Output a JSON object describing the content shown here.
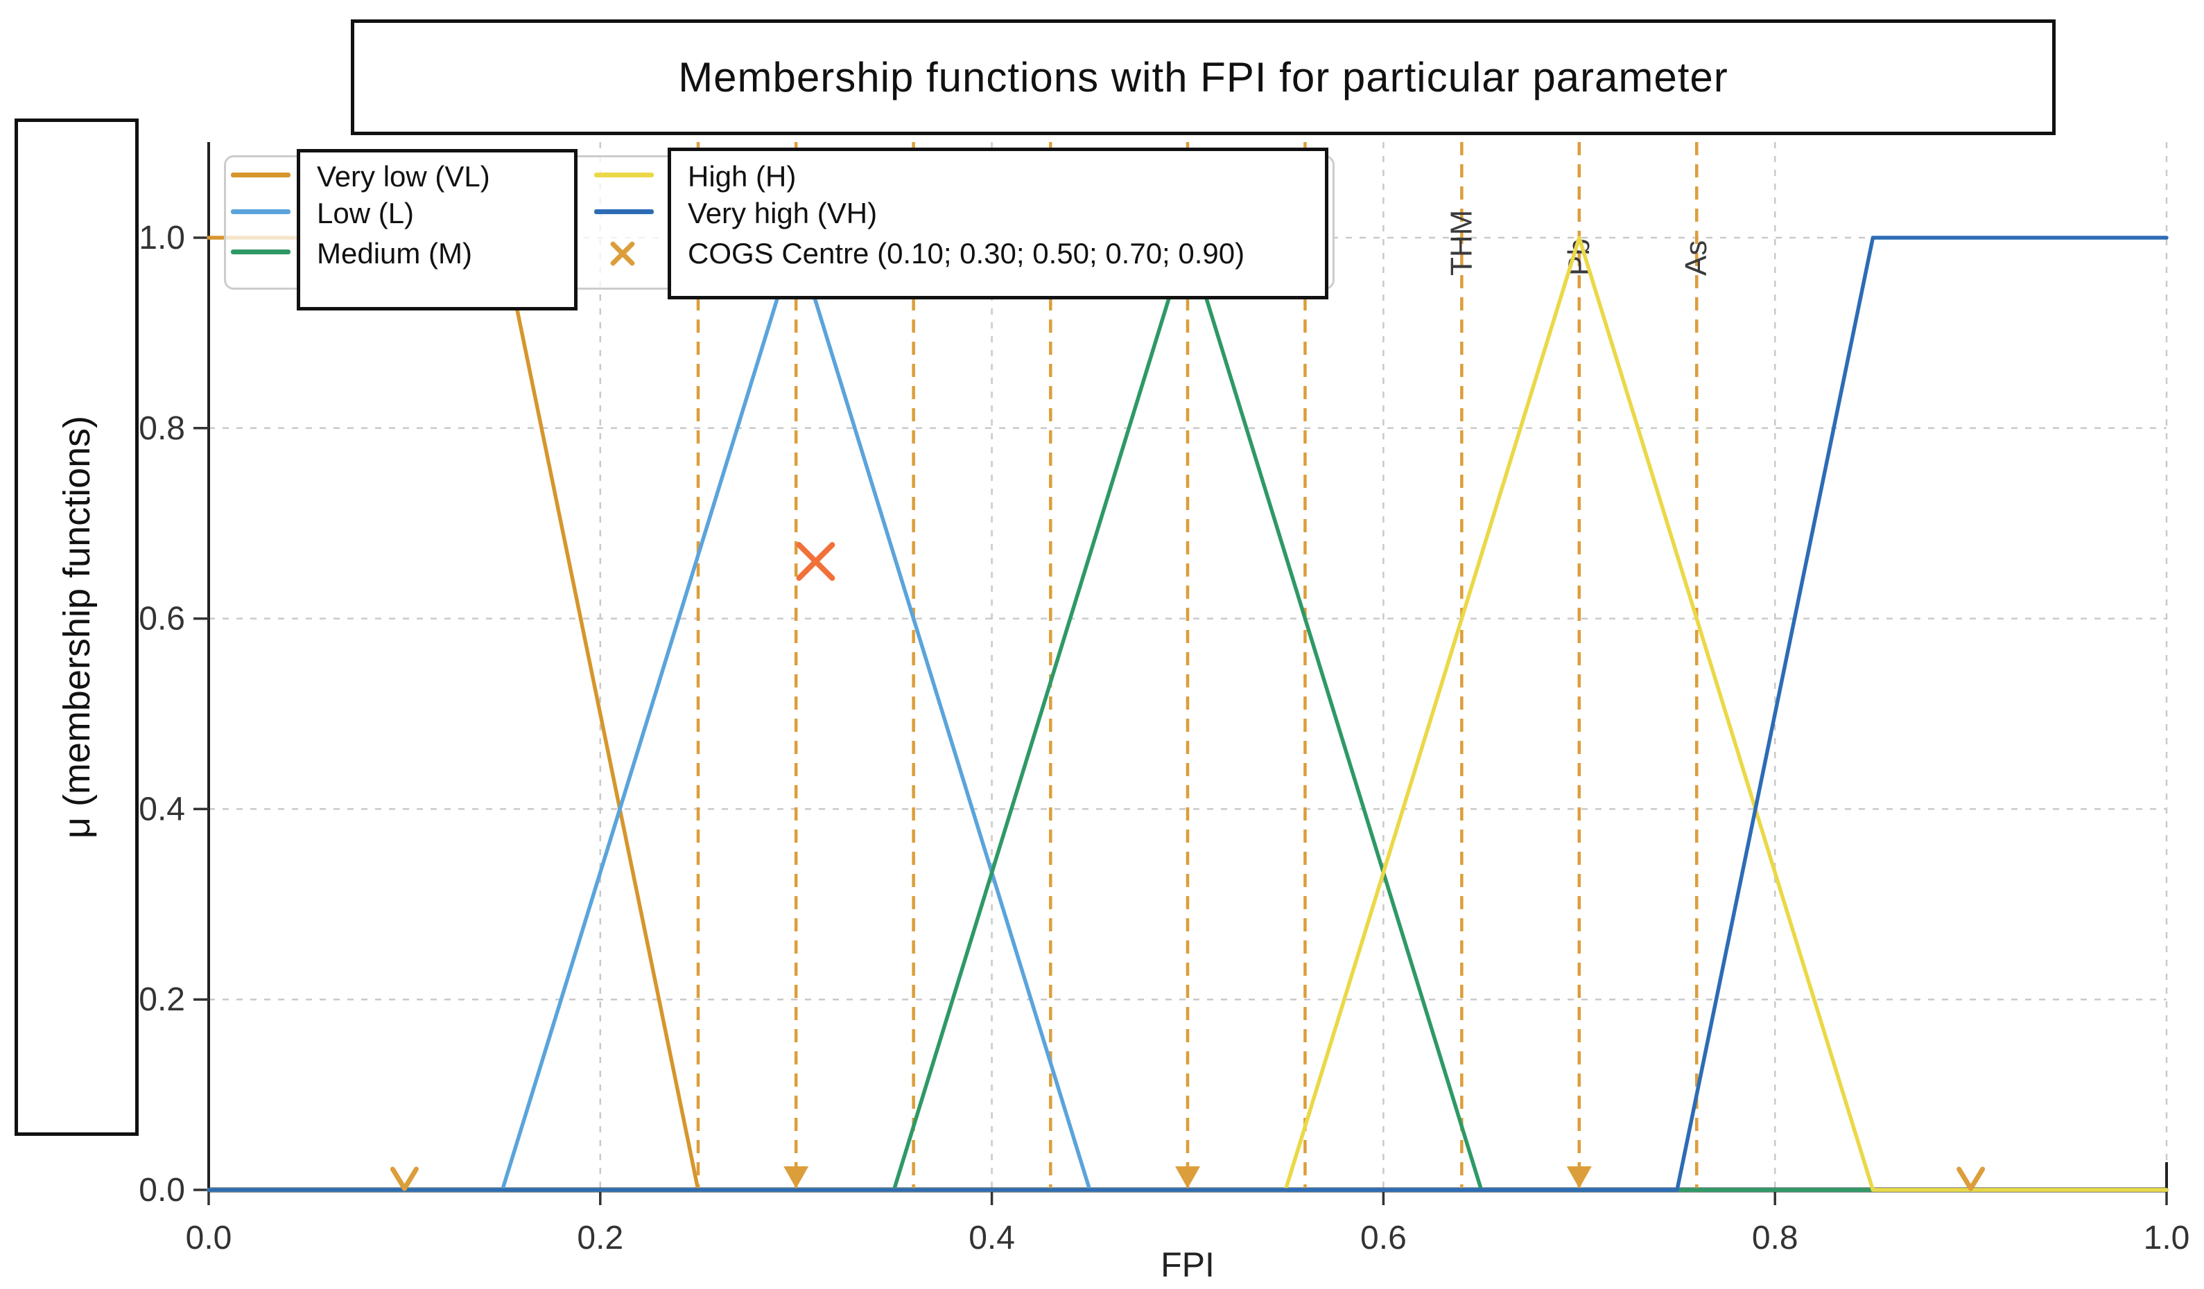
{
  "title": "Membership functions with FPI for particular parameter",
  "axes": {
    "xlabel": "FPI",
    "ylabel": "μ (membership functions)"
  },
  "legend": {
    "column1": [
      {
        "label": "Very low (VL)",
        "color": "#D6962D",
        "marker": "line"
      },
      {
        "label": "Low (L)",
        "color": "#5AA4DB",
        "marker": "line"
      },
      {
        "label": "Medium (M)",
        "color": "#2E9966",
        "marker": "line"
      }
    ],
    "column2": [
      {
        "label": "High (H)",
        "color": "#EBD847",
        "marker": "line"
      },
      {
        "label": "Very high (VH)",
        "color": "#2D6CB5",
        "marker": "line"
      },
      {
        "label": "COGS Centre (0.10; 0.30; 0.50; 0.70; 0.90)",
        "color": "#DC9E3A",
        "marker": "x"
      }
    ]
  },
  "chart_data": {
    "type": "line",
    "title": "Membership functions with FPI for particular parameter",
    "xlabel": "FPI",
    "ylabel": "μ (membership functions)",
    "xlim": [
      0.0,
      1.0
    ],
    "ylim": [
      0.0,
      1.1
    ],
    "grid": true,
    "legend_position": "upper left",
    "x_ticks": [
      0.0,
      0.2,
      0.4,
      0.6,
      0.8,
      1.0
    ],
    "y_ticks": [
      0.0,
      0.2,
      0.4,
      0.6,
      0.8,
      1.0
    ],
    "series": [
      {
        "name": "Very low (VL)",
        "color": "#D6962D",
        "points": [
          [
            0,
            1
          ],
          [
            0.15,
            1
          ],
          [
            0.25,
            0
          ],
          [
            1,
            0
          ]
        ]
      },
      {
        "name": "Low (L)",
        "color": "#5AA4DB",
        "points": [
          [
            0,
            0
          ],
          [
            0.15,
            0
          ],
          [
            0.3,
            1
          ],
          [
            0.45,
            0
          ],
          [
            1,
            0
          ]
        ]
      },
      {
        "name": "Medium (M)",
        "color": "#2E9966",
        "points": [
          [
            0,
            0
          ],
          [
            0.35,
            0
          ],
          [
            0.5,
            1
          ],
          [
            0.65,
            0
          ],
          [
            1,
            0
          ]
        ]
      },
      {
        "name": "High (H)",
        "color": "#EBD847",
        "points": [
          [
            0,
            0
          ],
          [
            0.55,
            0
          ],
          [
            0.7,
            1
          ],
          [
            0.85,
            0
          ],
          [
            1,
            0
          ]
        ]
      },
      {
        "name": "Very high (VH)",
        "color": "#2D6CB5",
        "points": [
          [
            0,
            0
          ],
          [
            0.75,
            0
          ],
          [
            0.85,
            1
          ],
          [
            1,
            1
          ]
        ]
      }
    ],
    "fpi_parameter_lines": [
      {
        "x": 0.25,
        "label": ""
      },
      {
        "x": 0.3,
        "label": ""
      },
      {
        "x": 0.36,
        "label": ""
      },
      {
        "x": 0.43,
        "label": ""
      },
      {
        "x": 0.5,
        "label": ""
      },
      {
        "x": 0.56,
        "label": ""
      },
      {
        "x": 0.64,
        "label": "THM"
      },
      {
        "x": 0.7,
        "label": "Pb"
      },
      {
        "x": 0.76,
        "label": "As"
      }
    ],
    "cogs_centres": [
      0.1,
      0.3,
      0.5,
      0.7,
      0.9
    ],
    "cogs_label": "COGS Centre (0.10; 0.30; 0.50; 0.70; 0.90)",
    "defuzzified_point": {
      "x": 0.31,
      "y": 0.66
    },
    "colors": {
      "dashed_lines": "#DC9E3A",
      "defuzzified_marker": "#F2703A",
      "grid": "#C9C9C9",
      "spine": "#2F3337",
      "tick_text": "#333333"
    }
  }
}
